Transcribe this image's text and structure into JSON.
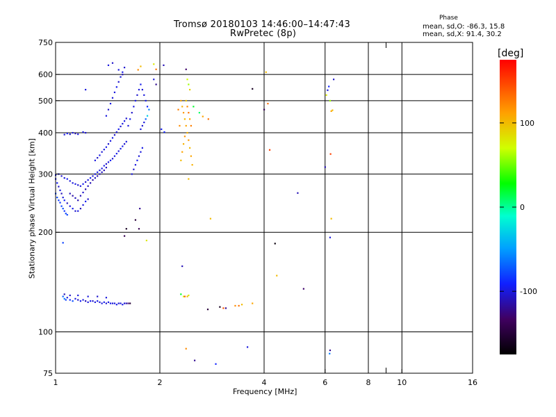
{
  "header": {
    "title_line1": "Tromsø 20180103 14:46:00–14:47:43",
    "title_line2": "RwPretec (8p)",
    "phase_heading": "Phase",
    "phase_o": "mean, sd,O: -86.3, 15.8",
    "phase_x": "mean, sd,X:  91.4, 30.2"
  },
  "colorbar": {
    "unit": "deg",
    "ticks": [
      {
        "label": "100",
        "value": 100
      },
      {
        "label": "0",
        "value": 0
      },
      {
        "label": "-100",
        "value": -100
      }
    ],
    "range": [
      -175,
      175
    ]
  },
  "chart_data": {
    "type": "scatter",
    "title": "Tromsø 20180103 14:46:00–14:47:43",
    "subtitle": "RwPretec (8p)",
    "xlabel": "Frequency [MHz]",
    "ylabel": "Stationary phase Virtual Height [km]",
    "x_scale": "log",
    "y_scale": "log",
    "xlim": [
      1,
      16
    ],
    "ylim": [
      75,
      750
    ],
    "x_ticks": [
      {
        "label": "1",
        "value": 1
      },
      {
        "label": "2",
        "value": 2
      },
      {
        "label": "4",
        "value": 4
      },
      {
        "label": "6",
        "value": 6
      },
      {
        "label": "8",
        "value": 8
      },
      {
        "label": "10",
        "value": 10
      },
      {
        "label": "16",
        "value": 16
      }
    ],
    "y_ticks": [
      {
        "label": "75",
        "value": 75
      },
      {
        "label": "100",
        "value": 100
      },
      {
        "label": "200",
        "value": 200
      },
      {
        "label": "300",
        "value": 300
      },
      {
        "label": "400",
        "value": 400
      },
      {
        "label": "500",
        "value": 500
      },
      {
        "label": "600",
        "value": 600
      },
      {
        "label": "750",
        "value": 750
      }
    ],
    "x_gridlines": [
      2,
      4,
      6,
      8,
      10
    ],
    "y_gridlines": [
      100,
      200,
      300,
      400,
      500,
      600
    ],
    "points": [
      [
        1.0,
        290,
        -100
      ],
      [
        1.01,
        282,
        -95
      ],
      [
        1.02,
        275,
        -105
      ],
      [
        1.03,
        268,
        -98
      ],
      [
        1.04,
        262,
        -110
      ],
      [
        1.05,
        255,
        -100
      ],
      [
        1.06,
        250,
        -92
      ],
      [
        1.08,
        245,
        -108
      ],
      [
        1.1,
        240,
        -100
      ],
      [
        1.12,
        236,
        -96
      ],
      [
        1.14,
        232,
        -104
      ],
      [
        1.16,
        232,
        -100
      ],
      [
        1.18,
        236,
        -110
      ],
      [
        1.2,
        242,
        -100
      ],
      [
        1.22,
        248,
        -95
      ],
      [
        1.24,
        252,
        -105
      ],
      [
        1.0,
        262,
        -80
      ],
      [
        1.01,
        255,
        -78
      ],
      [
        1.02,
        250,
        -82
      ],
      [
        1.03,
        246,
        -85
      ],
      [
        1.04,
        240,
        -80
      ],
      [
        1.05,
        236,
        -76
      ],
      [
        1.06,
        232,
        -84
      ],
      [
        1.07,
        228,
        -80
      ],
      [
        1.08,
        226,
        -78
      ],
      [
        1.0,
        298,
        -95
      ],
      [
        1.02,
        300,
        -100
      ],
      [
        1.04,
        296,
        -105
      ],
      [
        1.06,
        292,
        -100
      ],
      [
        1.08,
        290,
        -96
      ],
      [
        1.1,
        286,
        -102
      ],
      [
        1.12,
        282,
        -100
      ],
      [
        1.14,
        280,
        -98
      ],
      [
        1.16,
        278,
        -104
      ],
      [
        1.18,
        276,
        -100
      ],
      [
        1.2,
        280,
        -95
      ],
      [
        1.22,
        284,
        -105
      ],
      [
        1.24,
        288,
        -100
      ],
      [
        1.26,
        292,
        -98
      ],
      [
        1.28,
        296,
        -104
      ],
      [
        1.3,
        300,
        -100
      ],
      [
        1.32,
        304,
        -96
      ],
      [
        1.34,
        308,
        -102
      ],
      [
        1.36,
        312,
        -100
      ],
      [
        1.38,
        318,
        -98
      ],
      [
        1.4,
        322,
        -105
      ],
      [
        1.42,
        326,
        -100
      ],
      [
        1.44,
        330,
        -95
      ],
      [
        1.46,
        334,
        -104
      ],
      [
        1.48,
        340,
        -100
      ],
      [
        1.5,
        346,
        -96
      ],
      [
        1.52,
        352,
        -102
      ],
      [
        1.54,
        358,
        -100
      ],
      [
        1.56,
        364,
        -98
      ],
      [
        1.58,
        370,
        -104
      ],
      [
        1.6,
        376,
        -100
      ],
      [
        1.1,
        262,
        -110
      ],
      [
        1.12,
        258,
        -115
      ],
      [
        1.14,
        254,
        -108
      ],
      [
        1.16,
        250,
        -112
      ],
      [
        1.18,
        258,
        -110
      ],
      [
        1.2,
        264,
        -105
      ],
      [
        1.22,
        270,
        -112
      ],
      [
        1.24,
        276,
        -108
      ],
      [
        1.26,
        282,
        -110
      ],
      [
        1.28,
        288,
        -115
      ],
      [
        1.3,
        292,
        -108
      ],
      [
        1.32,
        296,
        -112
      ],
      [
        1.34,
        300,
        -110
      ],
      [
        1.36,
        304,
        -106
      ],
      [
        1.38,
        308,
        -112
      ],
      [
        1.4,
        314,
        -108
      ],
      [
        1.3,
        330,
        -100
      ],
      [
        1.32,
        336,
        -105
      ],
      [
        1.34,
        342,
        -98
      ],
      [
        1.36,
        350,
        -102
      ],
      [
        1.38,
        356,
        -100
      ],
      [
        1.4,
        362,
        -96
      ],
      [
        1.42,
        370,
        -104
      ],
      [
        1.44,
        378,
        -100
      ],
      [
        1.46,
        386,
        -98
      ],
      [
        1.48,
        394,
        -104
      ],
      [
        1.5,
        402,
        -100
      ],
      [
        1.52,
        410,
        -96
      ],
      [
        1.54,
        418,
        -102
      ],
      [
        1.56,
        426,
        -100
      ],
      [
        1.58,
        434,
        -98
      ],
      [
        1.6,
        442,
        -104
      ],
      [
        1.4,
        450,
        -100
      ],
      [
        1.42,
        470,
        -105
      ],
      [
        1.44,
        490,
        -98
      ],
      [
        1.46,
        510,
        -102
      ],
      [
        1.48,
        530,
        -100
      ],
      [
        1.5,
        550,
        -96
      ],
      [
        1.52,
        570,
        -104
      ],
      [
        1.54,
        590,
        -100
      ],
      [
        1.56,
        610,
        -98
      ],
      [
        1.58,
        630,
        -104
      ],
      [
        1.42,
        640,
        -100
      ],
      [
        1.46,
        650,
        -105
      ],
      [
        1.52,
        620,
        -100
      ],
      [
        1.56,
        600,
        -110
      ],
      [
        1.62,
        420,
        -100
      ],
      [
        1.64,
        440,
        -95
      ],
      [
        1.66,
        460,
        -105
      ],
      [
        1.68,
        480,
        -100
      ],
      [
        1.7,
        500,
        -98
      ],
      [
        1.72,
        520,
        -104
      ],
      [
        1.74,
        540,
        -100
      ],
      [
        1.76,
        560,
        -96
      ],
      [
        1.78,
        540,
        -102
      ],
      [
        1.8,
        520,
        -100
      ],
      [
        1.82,
        500,
        -98
      ],
      [
        1.84,
        480,
        -90
      ],
      [
        1.86,
        470,
        -60
      ],
      [
        1.84,
        450,
        -30
      ],
      [
        1.82,
        440,
        -70
      ],
      [
        1.8,
        430,
        -100
      ],
      [
        1.78,
        420,
        -104
      ],
      [
        1.76,
        410,
        -100
      ],
      [
        1.66,
        300,
        -100
      ],
      [
        1.68,
        310,
        -104
      ],
      [
        1.7,
        320,
        -100
      ],
      [
        1.72,
        330,
        -96
      ],
      [
        1.74,
        340,
        -102
      ],
      [
        1.76,
        350,
        -100
      ],
      [
        1.78,
        360,
        -98
      ],
      [
        1.06,
        395,
        -100
      ],
      [
        1.08,
        398,
        -95
      ],
      [
        1.1,
        396,
        -105
      ],
      [
        1.12,
        400,
        -100
      ],
      [
        1.14,
        398,
        -110
      ],
      [
        1.16,
        396,
        -100
      ],
      [
        1.2,
        402,
        -98
      ],
      [
        1.22,
        400,
        -104
      ],
      [
        1.05,
        128,
        -70
      ],
      [
        1.06,
        126,
        -60
      ],
      [
        1.07,
        125,
        -80
      ],
      [
        1.08,
        127,
        -100
      ],
      [
        1.1,
        125,
        -90
      ],
      [
        1.12,
        124,
        -75
      ],
      [
        1.14,
        126,
        -100
      ],
      [
        1.16,
        125,
        -105
      ],
      [
        1.18,
        124,
        -95
      ],
      [
        1.2,
        125,
        -100
      ],
      [
        1.22,
        124,
        -110
      ],
      [
        1.24,
        123,
        -100
      ],
      [
        1.26,
        124,
        -96
      ],
      [
        1.28,
        124,
        -104
      ],
      [
        1.3,
        123,
        -100
      ],
      [
        1.32,
        124,
        -98
      ],
      [
        1.34,
        123,
        -102
      ],
      [
        1.36,
        122,
        -100
      ],
      [
        1.38,
        123,
        -96
      ],
      [
        1.4,
        122,
        -104
      ],
      [
        1.42,
        123,
        -100
      ],
      [
        1.44,
        122,
        -98
      ],
      [
        1.46,
        122,
        -102
      ],
      [
        1.48,
        122,
        -100
      ],
      [
        1.5,
        121,
        -96
      ],
      [
        1.52,
        122,
        -104
      ],
      [
        1.54,
        122,
        -100
      ],
      [
        1.56,
        121,
        -98
      ],
      [
        1.58,
        122,
        -102
      ],
      [
        1.6,
        122,
        -110
      ],
      [
        1.62,
        122,
        -130
      ],
      [
        1.64,
        122,
        -150
      ],
      [
        1.06,
        130,
        -110
      ],
      [
        1.1,
        129,
        -105
      ],
      [
        1.16,
        129,
        -100
      ],
      [
        1.24,
        128,
        -100
      ],
      [
        1.32,
        128,
        -104
      ],
      [
        1.4,
        127,
        -100
      ],
      [
        1.22,
        540,
        -100
      ],
      [
        1.74,
        205,
        -140
      ],
      [
        1.6,
        205,
        -160
      ],
      [
        1.58,
        195,
        -140
      ],
      [
        1.05,
        186,
        -80
      ],
      [
        1.7,
        218,
        -150
      ],
      [
        1.75,
        236,
        -120
      ],
      [
        1.83,
        189,
        80
      ],
      [
        1.73,
        620,
        120
      ],
      [
        1.76,
        635,
        100
      ],
      [
        1.92,
        645,
        80
      ],
      [
        1.95,
        622,
        130
      ],
      [
        2.05,
        640,
        -110
      ],
      [
        1.92,
        580,
        -100
      ],
      [
        1.95,
        560,
        -120
      ],
      [
        2.02,
        410,
        -95
      ],
      [
        2.06,
        402,
        -90
      ],
      [
        2.3,
        500,
        110
      ],
      [
        2.32,
        480,
        105
      ],
      [
        2.34,
        460,
        115
      ],
      [
        2.36,
        440,
        100
      ],
      [
        2.38,
        420,
        110
      ],
      [
        2.4,
        400,
        105
      ],
      [
        2.42,
        380,
        115
      ],
      [
        2.44,
        360,
        100
      ],
      [
        2.46,
        340,
        110
      ],
      [
        2.48,
        320,
        105
      ],
      [
        2.38,
        500,
        95
      ],
      [
        2.4,
        480,
        120
      ],
      [
        2.42,
        460,
        130
      ],
      [
        2.44,
        440,
        110
      ],
      [
        2.46,
        420,
        125
      ],
      [
        2.36,
        390,
        115
      ],
      [
        2.34,
        370,
        105
      ],
      [
        2.32,
        350,
        110
      ],
      [
        2.3,
        330,
        100
      ],
      [
        2.28,
        420,
        120
      ],
      [
        2.26,
        470,
        125
      ],
      [
        2.38,
        622,
        -130
      ],
      [
        2.4,
        580,
        70
      ],
      [
        2.42,
        560,
        60
      ],
      [
        2.44,
        540,
        90
      ],
      [
        2.5,
        480,
        20
      ],
      [
        2.6,
        460,
        10
      ],
      [
        2.66,
        448,
        110
      ],
      [
        2.76,
        440,
        130
      ],
      [
        2.8,
        220,
        100
      ],
      [
        2.42,
        290,
        100
      ],
      [
        2.32,
        158,
        -110
      ],
      [
        2.3,
        130,
        20
      ],
      [
        2.34,
        128,
        70
      ],
      [
        2.36,
        128,
        140
      ],
      [
        2.4,
        128,
        100
      ],
      [
        2.42,
        129,
        80
      ],
      [
        2.75,
        117,
        -150
      ],
      [
        2.98,
        119,
        -160
      ],
      [
        3.05,
        118,
        140
      ],
      [
        3.1,
        118,
        -120
      ],
      [
        3.3,
        120,
        120
      ],
      [
        3.38,
        120,
        130
      ],
      [
        3.45,
        121,
        100
      ],
      [
        3.7,
        122,
        110
      ],
      [
        2.38,
        89,
        120
      ],
      [
        2.52,
        82,
        -120
      ],
      [
        2.9,
        80,
        -90
      ],
      [
        3.58,
        90,
        -100
      ],
      [
        3.7,
        543,
        -160
      ],
      [
        4.0,
        470,
        -140
      ],
      [
        4.05,
        610,
        100
      ],
      [
        4.1,
        490,
        130
      ],
      [
        4.15,
        355,
        150
      ],
      [
        4.3,
        185,
        -170
      ],
      [
        4.35,
        148,
        100
      ],
      [
        5.0,
        263,
        -110
      ],
      [
        5.2,
        135,
        -130
      ],
      [
        6.0,
        315,
        -110
      ],
      [
        6.05,
        520,
        80
      ],
      [
        6.1,
        538,
        -100
      ],
      [
        6.15,
        552,
        -90
      ],
      [
        6.2,
        500,
        60
      ],
      [
        6.25,
        465,
        110
      ],
      [
        6.3,
        468,
        100
      ],
      [
        6.35,
        580,
        -105
      ],
      [
        6.22,
        345,
        150
      ],
      [
        6.25,
        220,
        100
      ],
      [
        6.2,
        193,
        -100
      ],
      [
        6.18,
        86,
        -60
      ],
      [
        6.2,
        88,
        -120
      ]
    ]
  }
}
